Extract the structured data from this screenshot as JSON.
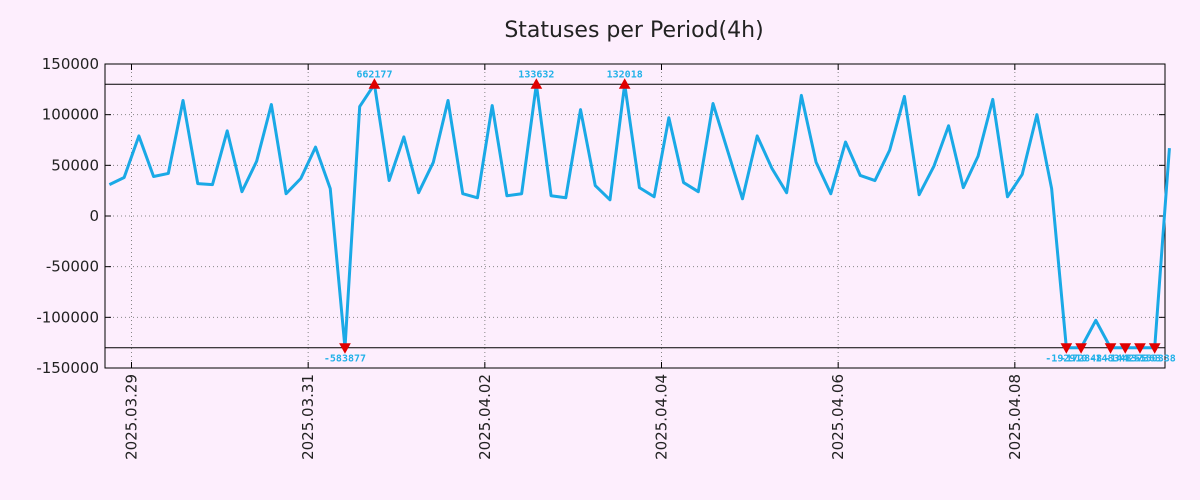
{
  "chart_data": {
    "type": "line",
    "title": "Statuses per Period(4h)",
    "xlabel": "",
    "ylabel": "",
    "ylim": [
      -150000,
      150000
    ],
    "y_ticks": [
      150000,
      100000,
      50000,
      0,
      -50000,
      -100000,
      -150000
    ],
    "y_tick_labels": [
      "150000",
      "100000",
      "50000",
      "0",
      "-50000",
      "-100000",
      "-150000"
    ],
    "x_ticks": [
      1.5,
      13.5,
      25.5,
      37.5,
      49.5,
      61.5
    ],
    "x_tick_labels": [
      "2025.03.29",
      "2025.03.31",
      "2025.04.02",
      "2025.04.04",
      "2025.04.06",
      "2025.04.08"
    ],
    "xlim": [
      -0.3,
      71.7
    ],
    "clip_levels": {
      "upper": 130000,
      "lower": -130000
    },
    "grid": true,
    "series": [
      {
        "name": "Statuses",
        "color": "#1aa9e6",
        "values": [
          31000,
          38000,
          79000,
          39000,
          42000,
          114000,
          32000,
          31000,
          84000,
          24000,
          54000,
          110000,
          22000,
          37000,
          68000,
          27000,
          -130000,
          108000,
          130000,
          35000,
          78000,
          23000,
          53000,
          114000,
          22000,
          18000,
          109000,
          20000,
          22000,
          130000,
          20000,
          18000,
          105000,
          30000,
          16000,
          130000,
          28000,
          19000,
          97000,
          33000,
          24000,
          111000,
          64000,
          17000,
          79000,
          47000,
          23000,
          119000,
          53000,
          22000,
          73000,
          40000,
          35000,
          65000,
          118000,
          21000,
          49000,
          89000,
          28000,
          59000,
          115000,
          19000,
          41000,
          100000,
          27000,
          -130000,
          -130000,
          -103000,
          -130000,
          -130000,
          -130000,
          -130000,
          67000
        ]
      }
    ],
    "annotations": [
      {
        "index": 16,
        "label": "-583877",
        "position": "below"
      },
      {
        "index": 18,
        "label": "662177",
        "position": "above"
      },
      {
        "index": 29,
        "label": "133632",
        "position": "above"
      },
      {
        "index": 35,
        "label": "132018",
        "position": "above"
      },
      {
        "index": 65,
        "label": "-192910",
        "position": "below"
      },
      {
        "index": 66,
        "label": "-172848",
        "position": "below"
      },
      {
        "index": 68,
        "label": "-148348",
        "position": "below"
      },
      {
        "index": 69,
        "label": "-144255",
        "position": "below"
      },
      {
        "index": 70,
        "label": "-137363",
        "position": "below"
      },
      {
        "index": 71,
        "label": "-150338",
        "position": "below"
      }
    ],
    "marker_color": "#e00000"
  }
}
